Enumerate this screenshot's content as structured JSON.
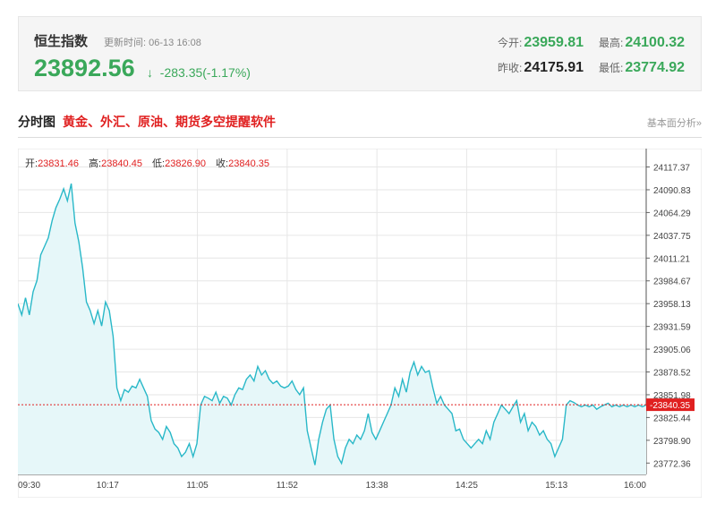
{
  "quote": {
    "name": "恒生指数",
    "time_label": "更新时间:",
    "time_value": "06-13 16:08",
    "price": "23892.56",
    "arrow": "↓",
    "change": "-283.35(-1.17%)",
    "open_label": "今开:",
    "open_value": "23959.81",
    "high_label": "最高:",
    "high_value": "24100.32",
    "prev_label": "昨收:",
    "prev_value": "24175.91",
    "low_label": "最低:",
    "low_value": "23774.92"
  },
  "section": {
    "title": "分时图",
    "ad_text": "黄金、外汇、原油、期货多空提醒软件",
    "link": "基本面分析»"
  },
  "ohlc": {
    "open_label": "开:",
    "open": "23831.46",
    "high_label": "高:",
    "high": "23840.45",
    "low_label": "低:",
    "low": "23826.90",
    "close_label": "收:",
    "close": "23840.35"
  },
  "colors": {
    "line": "#29b8c8",
    "area": "#e6f7f9",
    "up": "#e02020",
    "down": "#3aa85a",
    "grid": "#e6e6e6"
  },
  "chart_data": {
    "type": "area",
    "ylim": [
      23759.09,
      24130.44
    ],
    "y_ticks": [
      "24117.37",
      "24090.83",
      "24064.29",
      "24037.75",
      "24011.21",
      "23984.67",
      "23958.13",
      "23931.59",
      "23905.06",
      "23878.52",
      "23851.98",
      "23825.44",
      "23798.90",
      "23772.36"
    ],
    "x_ticks": [
      "09:30",
      "10:17",
      "11:05",
      "11:52",
      "13:38",
      "14:25",
      "15:13",
      "16:00"
    ],
    "current_value": 23840.35,
    "current_label": "23840.35",
    "x": [
      0,
      2,
      4,
      6,
      8,
      10,
      12,
      14,
      16,
      18,
      20,
      22,
      24,
      26,
      28,
      30,
      32,
      34,
      36,
      38,
      40,
      42,
      44,
      46,
      47,
      48,
      50,
      52,
      54,
      56,
      58,
      60,
      62,
      64,
      66,
      68,
      70,
      72,
      74,
      76,
      78,
      80,
      82,
      84,
      86,
      88,
      90,
      92,
      94,
      96,
      98,
      100,
      102,
      104,
      106,
      108,
      110,
      112,
      114,
      116,
      118,
      120,
      122,
      124,
      126,
      128,
      130,
      132,
      134,
      136,
      138,
      140,
      142,
      144,
      146,
      148,
      150,
      152,
      154,
      156,
      158,
      160,
      162,
      164,
      166,
      168,
      170,
      172,
      174,
      176,
      178,
      180,
      182,
      184,
      186,
      188,
      190,
      192,
      194,
      196,
      198,
      200,
      202,
      204,
      206,
      208,
      210,
      212,
      214,
      216,
      218,
      220,
      222,
      224,
      226,
      228,
      230,
      232,
      234,
      236,
      238,
      240,
      242,
      244,
      246,
      248,
      250,
      252,
      254,
      256,
      258,
      260,
      262,
      264,
      266,
      268,
      270,
      272,
      274,
      276,
      278,
      280,
      282,
      284,
      286,
      288,
      290,
      292,
      294,
      296,
      298,
      300,
      302,
      304,
      306,
      308,
      310,
      312,
      314,
      316,
      318,
      320,
      322,
      324,
      326,
      328,
      330
    ],
    "values": [
      23958,
      23945,
      23965,
      23945,
      23972,
      23985,
      24015,
      24025,
      24035,
      24055,
      24070,
      24080,
      24092,
      24078,
      24098,
      24052,
      24030,
      24000,
      23960,
      23950,
      23935,
      23950,
      23932,
      23960,
      23955,
      23950,
      23920,
      23860,
      23845,
      23858,
      23855,
      23862,
      23860,
      23870,
      23860,
      23850,
      23822,
      23812,
      23808,
      23800,
      23815,
      23808,
      23795,
      23790,
      23780,
      23785,
      23795,
      23780,
      23795,
      23840,
      23850,
      23848,
      23845,
      23855,
      23842,
      23850,
      23848,
      23840,
      23852,
      23860,
      23858,
      23870,
      23875,
      23868,
      23885,
      23875,
      23880,
      23870,
      23865,
      23868,
      23862,
      23860,
      23862,
      23868,
      23858,
      23852,
      23860,
      23810,
      23790,
      23770,
      23800,
      23820,
      23835,
      23840,
      23800,
      23780,
      23772,
      23790,
      23800,
      23795,
      23805,
      23800,
      23810,
      23830,
      23808,
      23800,
      23810,
      23820,
      23830,
      23840,
      23860,
      23850,
      23870,
      23855,
      23878,
      23890,
      23875,
      23885,
      23878,
      23880,
      23860,
      23842,
      23850,
      23840,
      23835,
      23830,
      23810,
      23812,
      23800,
      23795,
      23790,
      23795,
      23800,
      23795,
      23810,
      23800,
      23820,
      23830,
      23840,
      23835,
      23830,
      23838,
      23845,
      23820,
      23830,
      23810,
      23820,
      23815,
      23805,
      23810,
      23800,
      23795,
      23780,
      23790,
      23800,
      23840,
      23845,
      23843,
      23840,
      23838,
      23840,
      23838,
      23840,
      23835,
      23838,
      23840,
      23842,
      23838,
      23840,
      23838,
      23840,
      23838,
      23840,
      23838,
      23840,
      23838,
      23840
    ]
  }
}
